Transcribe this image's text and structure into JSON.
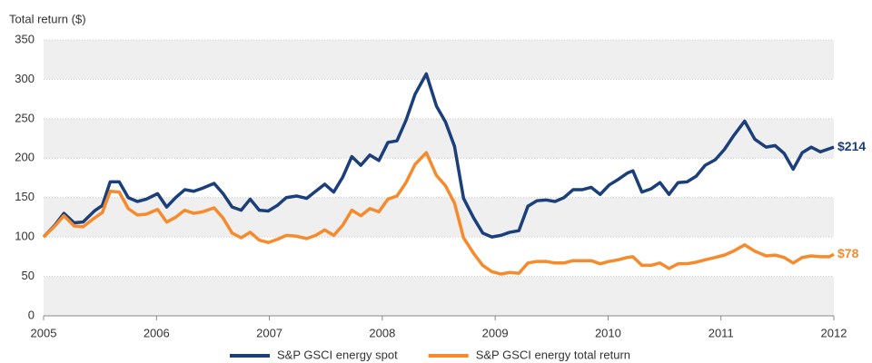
{
  "chart_data": {
    "type": "line",
    "y_label": "Total return ($)",
    "x": [
      2005,
      2005.1,
      2005.18,
      2005.27,
      2005.35,
      2005.45,
      2005.52,
      2005.59,
      2005.67,
      2005.75,
      2005.83,
      2005.91,
      2006.01,
      2006.09,
      2006.17,
      2006.25,
      2006.33,
      2006.41,
      2006.51,
      2006.59,
      2006.67,
      2006.75,
      2006.83,
      2006.91,
      2006.99,
      2007.07,
      2007.15,
      2007.24,
      2007.33,
      2007.41,
      2007.49,
      2007.57,
      2007.65,
      2007.73,
      2007.81,
      2007.89,
      2007.97,
      2008.05,
      2008.13,
      2008.21,
      2008.29,
      2008.39,
      2008.48,
      2008.56,
      2008.64,
      2008.72,
      2008.81,
      2008.89,
      2008.97,
      2009.05,
      2009.13,
      2009.21,
      2009.29,
      2009.37,
      2009.45,
      2009.53,
      2009.61,
      2009.69,
      2009.77,
      2009.85,
      2009.93,
      2010.01,
      2010.09,
      2010.17,
      2010.22,
      2010.3,
      2010.38,
      2010.46,
      2010.54,
      2010.62,
      2010.7,
      2010.78,
      2010.86,
      2010.95,
      2011.03,
      2011.11,
      2011.21,
      2011.3,
      2011.4,
      2011.48,
      2011.56,
      2011.64,
      2011.72,
      2011.8,
      2011.88,
      2011.96,
      2012
    ],
    "series": [
      {
        "name": "S&P GSCI energy spot",
        "color": "#1b3f7a",
        "end_label": "$214",
        "values": [
          100,
          115,
          130,
          118,
          119,
          133,
          140,
          170,
          170,
          150,
          145,
          148,
          155,
          138,
          150,
          160,
          158,
          162,
          168,
          155,
          138,
          134,
          148,
          134,
          133,
          140,
          150,
          152,
          149,
          158,
          167,
          157,
          176,
          202,
          191,
          204,
          197,
          220,
          222,
          248,
          281,
          307,
          266,
          246,
          215,
          149,
          124,
          105,
          100,
          102,
          106,
          108,
          139,
          146,
          147,
          145,
          150,
          160,
          160,
          163,
          154,
          166,
          173,
          181,
          184,
          157,
          161,
          169,
          154,
          169,
          170,
          177,
          191,
          198,
          211,
          228,
          247,
          224,
          214,
          216,
          206,
          186,
          207,
          214,
          208,
          212,
          214
        ]
      },
      {
        "name": "S&P GSCI energy total return",
        "color": "#f58b2c",
        "end_label": "$78",
        "values": [
          100,
          114,
          127,
          114,
          113,
          124,
          131,
          158,
          157,
          136,
          128,
          129,
          135,
          119,
          125,
          134,
          130,
          132,
          137,
          124,
          105,
          99,
          106,
          96,
          93,
          97,
          102,
          101,
          98,
          102,
          109,
          102,
          115,
          134,
          127,
          136,
          132,
          148,
          152,
          169,
          192,
          207,
          178,
          165,
          143,
          99,
          79,
          64,
          56,
          53,
          55,
          54,
          67,
          69,
          69,
          67,
          67,
          70,
          70,
          70,
          66,
          69,
          71,
          74,
          75,
          64,
          64,
          67,
          60,
          66,
          66,
          68,
          71,
          74,
          77,
          82,
          90,
          82,
          76,
          77,
          74,
          67,
          74,
          76,
          75,
          75,
          78
        ]
      }
    ],
    "xlim": [
      2005,
      2012
    ],
    "xticks": [
      2005,
      2006,
      2007,
      2008,
      2009,
      2010,
      2011,
      2012
    ],
    "ylim": [
      0,
      350
    ],
    "yticks": [
      0,
      50,
      100,
      150,
      200,
      250,
      300,
      350
    ],
    "grid": true,
    "bands": true,
    "legend": "bottom"
  }
}
